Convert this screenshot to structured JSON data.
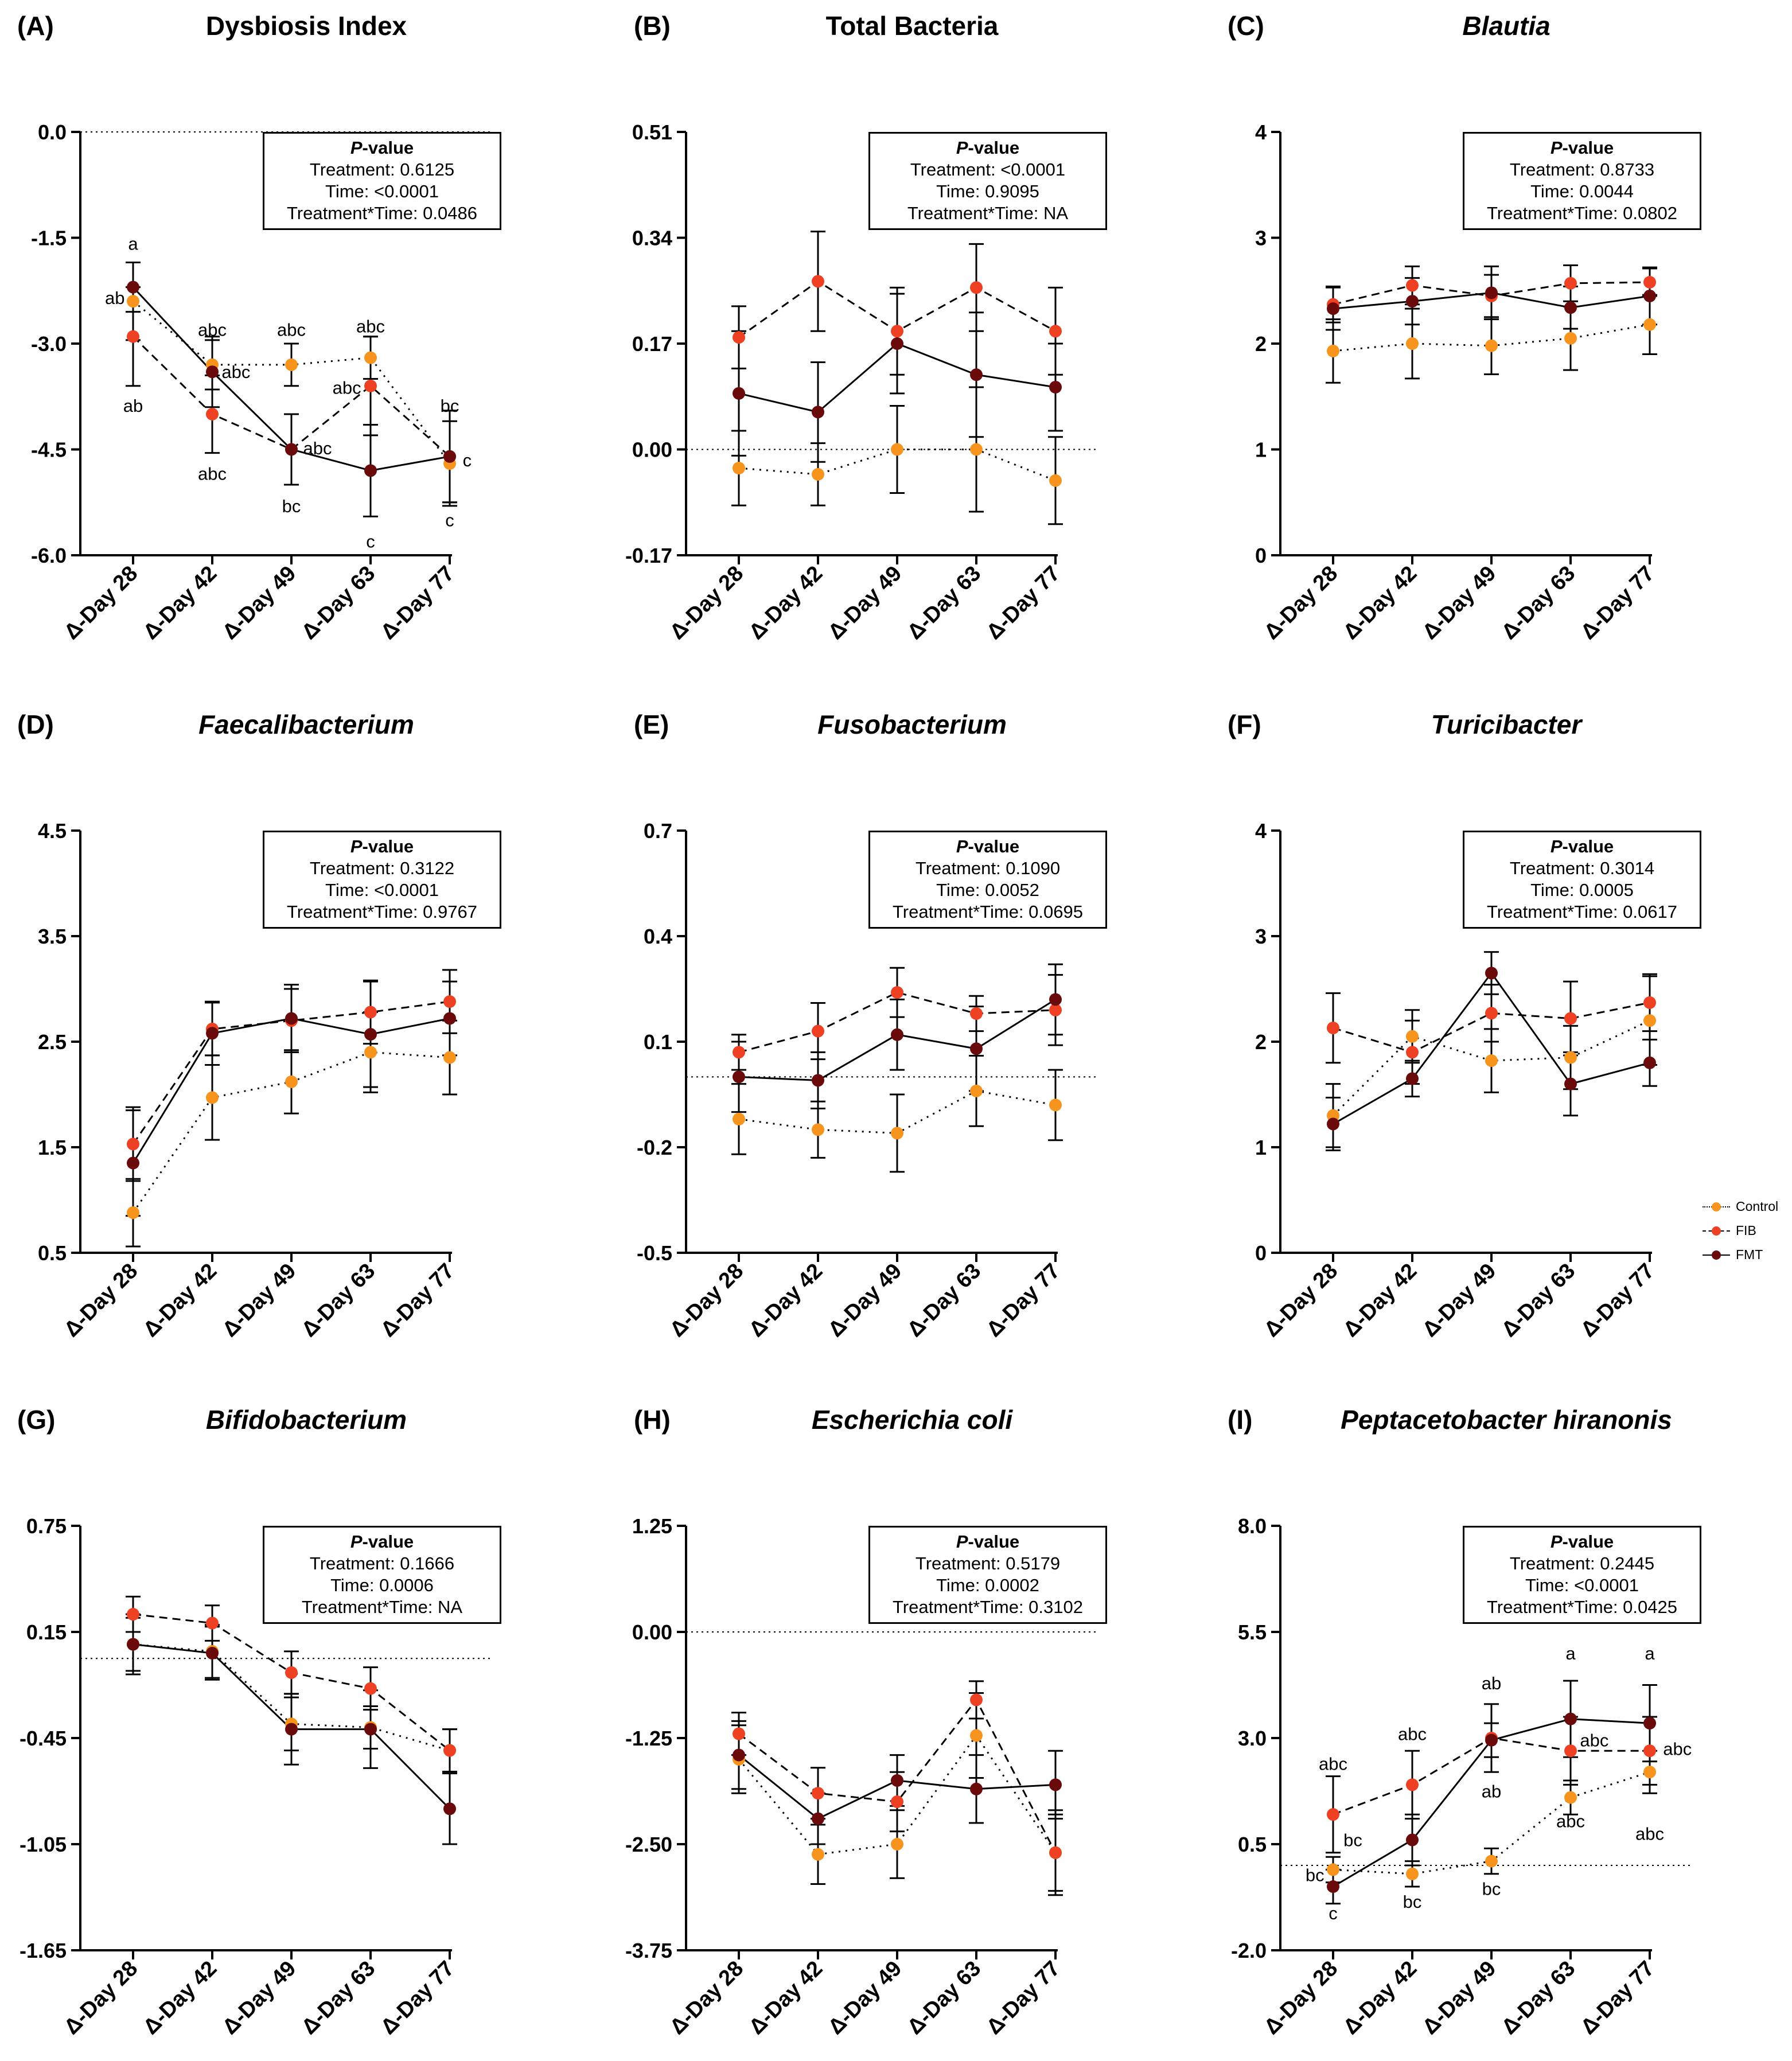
{
  "x_categories": [
    "Δ-Day 28",
    "Δ-Day 42",
    "Δ-Day 49",
    "Δ-Day 63",
    "Δ-Day 77"
  ],
  "legend": [
    {
      "name": "Control",
      "color": "#F7941D",
      "style": "dotted"
    },
    {
      "name": "FIB",
      "color": "#EE4023",
      "style": "dashed"
    },
    {
      "name": "FMT",
      "color": "#6B0A0A",
      "style": "solid"
    }
  ],
  "pvalue_header": "P-value",
  "chart_data": [
    {
      "letter": "(A)",
      "title": "Dysbiosis Index",
      "italic": false,
      "type": "line",
      "ylim": [
        -6.0,
        0.0
      ],
      "yticks": [
        "0.0",
        "-1.5",
        "-3.0",
        "-4.5",
        "-6.0"
      ],
      "ytick_values": [
        0.0,
        -1.5,
        -3.0,
        -4.5,
        -6.0
      ],
      "reference_line": 0.0,
      "pvalues": [
        "Treatment: 0.6125",
        "Time: <0.0001",
        "Treatment*Time: 0.0486"
      ],
      "series": [
        {
          "name": "Control",
          "values": [
            -2.4,
            -3.3,
            -3.3,
            -3.2,
            -4.7
          ],
          "errors": [
            0.55,
            0.35,
            0.3,
            0.3,
            0.6
          ]
        },
        {
          "name": "FIB",
          "values": [
            -2.9,
            -4.0,
            -4.5,
            -3.6,
            -4.6
          ],
          "errors": [
            0.7,
            0.55,
            0.5,
            0.7,
            0.65
          ]
        },
        {
          "name": "FMT",
          "values": [
            -2.2,
            -3.4,
            -4.5,
            -4.8,
            -4.6
          ],
          "errors": [
            0.35,
            0.5,
            0.5,
            0.65,
            0.65
          ]
        }
      ],
      "annotations": [
        {
          "text": "a",
          "x": 0,
          "y": -1.58
        },
        {
          "text": "ab",
          "x": -0.23,
          "y": -2.35
        },
        {
          "text": "ab",
          "x": 0,
          "y": -3.88
        },
        {
          "text": "abc",
          "x": 1,
          "y": -2.8
        },
        {
          "text": "abc",
          "x": 1.3,
          "y": -3.4
        },
        {
          "text": "abc",
          "x": 1,
          "y": -4.84
        },
        {
          "text": "abc",
          "x": 2,
          "y": -2.8
        },
        {
          "text": "abc",
          "x": 2.33,
          "y": -4.48
        },
        {
          "text": "bc",
          "x": 2,
          "y": -5.3
        },
        {
          "text": "abc",
          "x": 3,
          "y": -2.75
        },
        {
          "text": "abc",
          "x": 2.7,
          "y": -3.62
        },
        {
          "text": "c",
          "x": 3,
          "y": -5.8
        },
        {
          "text": "bc",
          "x": 4,
          "y": -3.88
        },
        {
          "text": "c",
          "x": 4.22,
          "y": -4.65
        },
        {
          "text": "c",
          "x": 4,
          "y": -5.5
        }
      ]
    },
    {
      "letter": "(B)",
      "title": "Total Bacteria",
      "italic": false,
      "type": "line",
      "ylim": [
        -0.17,
        0.51
      ],
      "yticks": [
        "0.51",
        "0.34",
        "0.17",
        "0.00",
        "-0.17"
      ],
      "ytick_values": [
        0.51,
        0.34,
        0.17,
        0.0,
        -0.17
      ],
      "reference_line": 0.0,
      "pvalues": [
        "Treatment: <0.0001",
        "Time: 0.9095",
        "Treatment*Time: NA"
      ],
      "series": [
        {
          "name": "Control",
          "values": [
            -0.03,
            -0.04,
            0.0,
            0.0,
            -0.05
          ],
          "errors": [
            0.06,
            0.05,
            0.07,
            0.1,
            0.07
          ]
        },
        {
          "name": "FIB",
          "values": [
            0.18,
            0.27,
            0.19,
            0.26,
            0.19
          ],
          "errors": [
            0.05,
            0.08,
            0.07,
            0.07,
            0.07
          ]
        },
        {
          "name": "FMT",
          "values": [
            0.09,
            0.06,
            0.17,
            0.12,
            0.1
          ],
          "errors": [
            0.1,
            0.08,
            0.08,
            0.1,
            0.07
          ]
        }
      ]
    },
    {
      "letter": "(C)",
      "title": "Blautia",
      "italic": true,
      "type": "line",
      "ylim": [
        0,
        4
      ],
      "yticks": [
        "4",
        "3",
        "2",
        "1",
        "0"
      ],
      "ytick_values": [
        4,
        3,
        2,
        1,
        0
      ],
      "reference_line": null,
      "pvalues": [
        "Treatment: 0.8733",
        "Time: 0.0044",
        "Treatment*Time: 0.0802"
      ],
      "series": [
        {
          "name": "Control",
          "values": [
            1.93,
            2.0,
            1.98,
            2.05,
            2.18
          ],
          "errors": [
            0.3,
            0.33,
            0.27,
            0.3,
            0.28
          ]
        },
        {
          "name": "FIB",
          "values": [
            2.37,
            2.55,
            2.45,
            2.57,
            2.58
          ],
          "errors": [
            0.17,
            0.18,
            0.2,
            0.17,
            0.13
          ]
        },
        {
          "name": "FMT",
          "values": [
            2.33,
            2.4,
            2.48,
            2.34,
            2.45
          ],
          "errors": [
            0.2,
            0.22,
            0.25,
            0.2,
            0.27
          ]
        }
      ]
    },
    {
      "letter": "(D)",
      "title": "Faecalibacterium",
      "italic": true,
      "type": "line",
      "ylim": [
        0.5,
        4.5
      ],
      "yticks": [
        "4.5",
        "3.5",
        "2.5",
        "1.5",
        "0.5"
      ],
      "ytick_values": [
        4.5,
        3.5,
        2.5,
        1.5,
        0.5
      ],
      "reference_line": null,
      "pvalues": [
        "Treatment: 0.3122",
        "Time: <0.0001",
        "Treatment*Time: 0.9767"
      ],
      "series": [
        {
          "name": "Control",
          "values": [
            0.88,
            1.97,
            2.12,
            2.4,
            2.35
          ],
          "errors": [
            0.32,
            0.4,
            0.3,
            0.38,
            0.35
          ]
        },
        {
          "name": "FIB",
          "values": [
            1.53,
            2.62,
            2.7,
            2.78,
            2.88
          ],
          "errors": [
            0.35,
            0.25,
            0.3,
            0.3,
            0.3
          ]
        },
        {
          "name": "FMT",
          "values": [
            1.35,
            2.58,
            2.72,
            2.57,
            2.72
          ],
          "errors": [
            0.5,
            0.3,
            0.32,
            0.5,
            0.35
          ]
        }
      ]
    },
    {
      "letter": "(E)",
      "title": "Fusobacterium",
      "italic": true,
      "type": "line",
      "ylim": [
        -0.5,
        0.7
      ],
      "yticks": [
        "0.7",
        "0.4",
        "0.1",
        "-0.2",
        "-0.5"
      ],
      "ytick_values": [
        0.7,
        0.4,
        0.1,
        -0.2,
        -0.5
      ],
      "reference_line": 0.0,
      "pvalues": [
        "Treatment: 0.1090",
        "Time: 0.0052",
        "Treatment*Time: 0.0695"
      ],
      "series": [
        {
          "name": "Control",
          "values": [
            -0.12,
            -0.15,
            -0.16,
            -0.04,
            -0.08
          ],
          "errors": [
            0.1,
            0.08,
            0.11,
            0.1,
            0.1
          ]
        },
        {
          "name": "FIB",
          "values": [
            0.07,
            0.13,
            0.24,
            0.18,
            0.19
          ],
          "errors": [
            0.05,
            0.08,
            0.07,
            0.05,
            0.1
          ]
        },
        {
          "name": "FMT",
          "values": [
            0.0,
            -0.01,
            0.12,
            0.08,
            0.22
          ],
          "errors": [
            0.1,
            0.08,
            0.1,
            0.12,
            0.1
          ]
        }
      ]
    },
    {
      "letter": "(F)",
      "title": "Turicibacter",
      "italic": true,
      "type": "line",
      "ylim": [
        0,
        4
      ],
      "yticks": [
        "4",
        "3",
        "2",
        "1",
        "0"
      ],
      "ytick_values": [
        4,
        3,
        2,
        1,
        0
      ],
      "reference_line": null,
      "pvalues": [
        "Treatment: 0.3014",
        "Time: 0.0005",
        "Treatment*Time: 0.0617"
      ],
      "series": [
        {
          "name": "Control",
          "values": [
            1.3,
            2.05,
            1.82,
            1.85,
            2.2
          ],
          "errors": [
            0.3,
            0.25,
            0.3,
            0.3,
            0.42
          ]
        },
        {
          "name": "FIB",
          "values": [
            2.13,
            1.9,
            2.27,
            2.22,
            2.37
          ],
          "errors": [
            0.33,
            0.3,
            0.27,
            0.35,
            0.27
          ]
        },
        {
          "name": "FMT",
          "values": [
            1.22,
            1.65,
            2.65,
            1.6,
            1.8
          ],
          "errors": [
            0.25,
            0.17,
            0.2,
            0.3,
            0.22
          ]
        }
      ]
    },
    {
      "letter": "(G)",
      "title": "Bifidobacterium",
      "italic": true,
      "type": "line",
      "ylim": [
        -1.65,
        0.75
      ],
      "yticks": [
        "0.75",
        "0.15",
        "-0.45",
        "-1.05",
        "-1.65"
      ],
      "ytick_values": [
        0.75,
        0.15,
        -0.45,
        -1.05,
        -1.65
      ],
      "reference_line": 0.0,
      "pvalues": [
        "Treatment: 0.1666",
        "Time: 0.0006",
        "Treatment*Time: NA"
      ],
      "series": [
        {
          "name": "Control",
          "values": [
            0.08,
            0.04,
            -0.37,
            -0.39,
            -0.52
          ],
          "errors": [
            0.15,
            0.15,
            0.15,
            0.12,
            0.12
          ]
        },
        {
          "name": "FIB",
          "values": [
            0.25,
            0.2,
            -0.08,
            -0.17,
            -0.52
          ],
          "errors": [
            0.1,
            0.1,
            0.12,
            0.12,
            0.12
          ]
        },
        {
          "name": "FMT",
          "values": [
            0.08,
            0.03,
            -0.4,
            -0.4,
            -0.85
          ],
          "errors": [
            0.17,
            0.15,
            0.2,
            0.22,
            0.2
          ]
        }
      ]
    },
    {
      "letter": "(H)",
      "title": "Escherichia coli",
      "italic": true,
      "type": "line",
      "ylim": [
        -3.75,
        1.25
      ],
      "yticks": [
        "1.25",
        "0.00",
        "-1.25",
        "-2.50",
        "-3.75"
      ],
      "ytick_values": [
        1.25,
        0.0,
        -1.25,
        -2.5,
        -3.75
      ],
      "reference_line": 0.0,
      "pvalues": [
        "Treatment: 0.5179",
        "Time: 0.0002",
        "Treatment*Time: 0.3102"
      ],
      "series": [
        {
          "name": "Control",
          "values": [
            -1.5,
            -2.62,
            -2.5,
            -1.22,
            -2.6
          ],
          "errors": [
            0.4,
            0.35,
            0.4,
            0.5,
            0.45
          ]
        },
        {
          "name": "FIB",
          "values": [
            -1.2,
            -1.9,
            -2.0,
            -0.8,
            -2.6
          ],
          "errors": [
            0.25,
            0.3,
            0.35,
            0.22,
            0.5
          ]
        },
        {
          "name": "FMT",
          "values": [
            -1.45,
            -2.2,
            -1.75,
            -1.85,
            -1.8
          ],
          "errors": [
            0.4,
            0.3,
            0.3,
            0.4,
            0.4
          ]
        }
      ]
    },
    {
      "letter": "(I)",
      "title": "Peptacetobacter hiranonis",
      "italic": true,
      "type": "line",
      "ylim": [
        -2.0,
        8.0
      ],
      "yticks": [
        "8.0",
        "5.5",
        "3.0",
        "0.5",
        "-2.0"
      ],
      "ytick_values": [
        8.0,
        5.5,
        3.0,
        0.5,
        -2.0
      ],
      "reference_line": 0.0,
      "pvalues": [
        "Treatment: 0.2445",
        "Time: <0.0001",
        "Treatment*Time: 0.0425"
      ],
      "series": [
        {
          "name": "Control",
          "values": [
            -0.1,
            -0.2,
            0.1,
            1.6,
            2.2
          ],
          "errors": [
            0.3,
            0.3,
            0.3,
            0.4,
            0.5
          ]
        },
        {
          "name": "FIB",
          "values": [
            1.2,
            1.9,
            3.0,
            2.7,
            2.7
          ],
          "errors": [
            0.9,
            0.8,
            0.8,
            0.8,
            0.8
          ]
        },
        {
          "name": "FMT",
          "values": [
            -0.5,
            0.6,
            2.95,
            3.45,
            3.35
          ],
          "errors": [
            0.4,
            0.6,
            0.4,
            0.9,
            0.9
          ]
        }
      ],
      "annotations": [
        {
          "text": "abc",
          "x": 0,
          "y": 2.4
        },
        {
          "text": "bc",
          "x": -0.23,
          "y": -0.22
        },
        {
          "text": "c",
          "x": 0,
          "y": -1.12
        },
        {
          "text": "abc",
          "x": 1,
          "y": 3.1
        },
        {
          "text": "bc",
          "x": 0.25,
          "y": 0.6
        },
        {
          "text": "bc",
          "x": 1,
          "y": -0.85
        },
        {
          "text": "ab",
          "x": 2,
          "y": 4.3
        },
        {
          "text": "ab",
          "x": 2,
          "y": 1.75
        },
        {
          "text": "bc",
          "x": 2,
          "y": -0.55
        },
        {
          "text": "a",
          "x": 3,
          "y": 5.0
        },
        {
          "text": "abc",
          "x": 3.3,
          "y": 2.95
        },
        {
          "text": "abc",
          "x": 3,
          "y": 1.05
        },
        {
          "text": "a",
          "x": 4,
          "y": 5.0
        },
        {
          "text": "abc",
          "x": 4.35,
          "y": 2.75
        },
        {
          "text": "abc",
          "x": 4,
          "y": 0.75
        }
      ]
    }
  ]
}
